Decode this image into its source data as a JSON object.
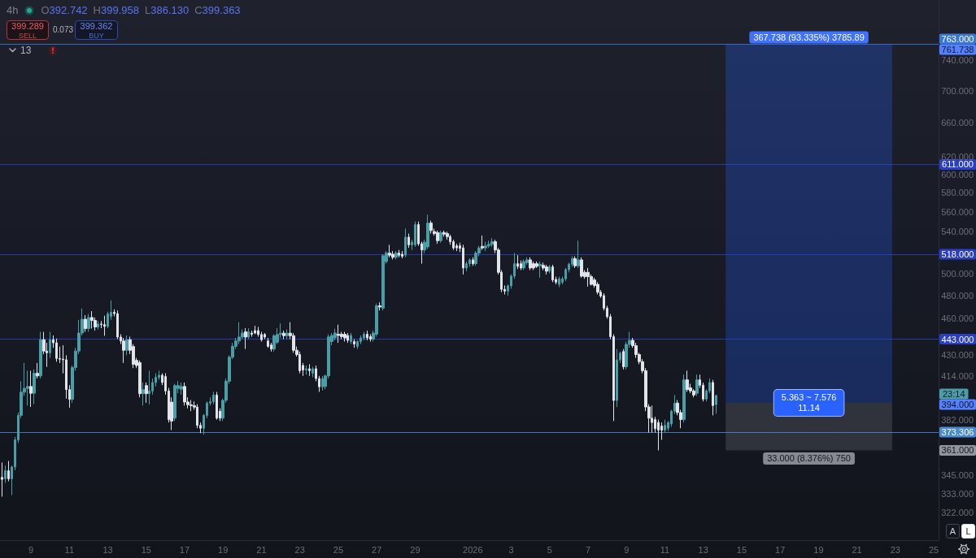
{
  "chart_data": {
    "type": "candlestick",
    "title": "4h",
    "subtitle": "O392.742 H399.958 L386.130 C399.363",
    "x": [
      "2025-12-07T12:00",
      "2025-12-07T16:00",
      "2025-12-07T20:00",
      "2025-12-08T00:00",
      "2025-12-08T04:00",
      "2025-12-08T08:00",
      "2025-12-08T12:00",
      "2025-12-08T16:00",
      "2025-12-08T20:00",
      "2025-12-09T00:00",
      "2025-12-09T04:00",
      "2025-12-09T08:00",
      "2025-12-09T12:00",
      "2025-12-09T16:00",
      "2025-12-09T20:00",
      "2025-12-10T00:00",
      "2025-12-10T04:00",
      "2025-12-10T08:00",
      "2025-12-10T12:00",
      "2025-12-10T16:00",
      "2025-12-10T20:00",
      "2025-12-11T00:00",
      "2025-12-11T04:00",
      "2025-12-11T08:00",
      "2025-12-11T12:00",
      "2025-12-11T16:00",
      "2025-12-11T20:00",
      "2025-12-12T00:00",
      "2025-12-12T04:00",
      "2025-12-12T08:00",
      "2025-12-12T12:00",
      "2025-12-12T16:00",
      "2025-12-12T20:00",
      "2025-12-13T00:00",
      "2025-12-13T04:00",
      "2025-12-13T08:00",
      "2025-12-13T12:00",
      "2025-12-13T16:00",
      "2025-12-13T20:00",
      "2025-12-14T00:00",
      "2025-12-14T04:00",
      "2025-12-14T08:00",
      "2025-12-14T12:00",
      "2025-12-14T16:00",
      "2025-12-14T20:00",
      "2025-12-15T00:00",
      "2025-12-15T04:00",
      "2025-12-15T08:00",
      "2025-12-15T12:00",
      "2025-12-15T16:00",
      "2025-12-15T20:00",
      "2025-12-16T00:00",
      "2025-12-16T04:00",
      "2025-12-16T08:00",
      "2025-12-16T12:00",
      "2025-12-16T16:00",
      "2025-12-16T20:00",
      "2025-12-17T00:00",
      "2025-12-17T04:00",
      "2025-12-17T08:00",
      "2025-12-17T12:00",
      "2025-12-17T16:00",
      "2025-12-17T20:00",
      "2025-12-18T00:00",
      "2025-12-18T04:00",
      "2025-12-18T08:00",
      "2025-12-18T12:00",
      "2025-12-18T16:00",
      "2025-12-18T20:00",
      "2025-12-19T00:00",
      "2025-12-19T04:00",
      "2025-12-19T08:00",
      "2025-12-19T12:00",
      "2025-12-19T16:00",
      "2025-12-19T20:00",
      "2025-12-20T00:00",
      "2025-12-20T04:00",
      "2025-12-20T08:00",
      "2025-12-20T12:00",
      "2025-12-20T16:00",
      "2025-12-20T20:00",
      "2025-12-21T00:00",
      "2025-12-21T04:00",
      "2025-12-21T08:00",
      "2025-12-21T12:00",
      "2025-12-21T16:00",
      "2025-12-21T20:00",
      "2025-12-22T00:00",
      "2025-12-22T04:00",
      "2025-12-22T08:00",
      "2025-12-22T12:00",
      "2025-12-22T16:00",
      "2025-12-22T20:00",
      "2025-12-23T00:00",
      "2025-12-23T04:00",
      "2025-12-23T08:00",
      "2025-12-23T12:00",
      "2025-12-23T16:00",
      "2025-12-23T20:00",
      "2025-12-24T00:00",
      "2025-12-24T04:00",
      "2025-12-24T08:00",
      "2025-12-24T12:00",
      "2025-12-24T16:00",
      "2025-12-24T20:00",
      "2025-12-25T00:00",
      "2025-12-25T04:00",
      "2025-12-25T08:00",
      "2025-12-25T12:00",
      "2025-12-25T16:00",
      "2025-12-25T20:00",
      "2025-12-26T00:00",
      "2025-12-26T04:00",
      "2025-12-26T08:00",
      "2025-12-26T12:00",
      "2025-12-26T16:00",
      "2025-12-26T20:00",
      "2025-12-27T00:00",
      "2025-12-27T04:00",
      "2025-12-27T08:00",
      "2025-12-27T12:00",
      "2025-12-27T16:00",
      "2025-12-27T20:00",
      "2025-12-28T00:00",
      "2025-12-28T04:00",
      "2025-12-28T08:00",
      "2025-12-28T12:00",
      "2025-12-28T16:00",
      "2025-12-28T20:00",
      "2025-12-29T00:00",
      "2025-12-29T04:00",
      "2025-12-29T08:00",
      "2025-12-29T12:00",
      "2025-12-29T16:00",
      "2025-12-29T20:00",
      "2025-12-30T00:00",
      "2025-12-30T04:00",
      "2025-12-30T08:00",
      "2025-12-30T12:00",
      "2025-12-30T16:00",
      "2025-12-30T20:00",
      "2025-12-31T00:00",
      "2025-12-31T04:00",
      "2025-12-31T08:00",
      "2025-12-31T12:00",
      "2025-12-31T16:00",
      "2025-12-31T20:00",
      "2026-01-01T00:00",
      "2026-01-01T04:00",
      "2026-01-01T08:00",
      "2026-01-01T12:00",
      "2026-01-01T16:00",
      "2026-01-01T20:00",
      "2026-01-02T00:00",
      "2026-01-02T04:00",
      "2026-01-02T08:00",
      "2026-01-02T12:00",
      "2026-01-02T16:00",
      "2026-01-02T20:00",
      "2026-01-03T00:00",
      "2026-01-03T04:00",
      "2026-01-03T08:00",
      "2026-01-03T12:00",
      "2026-01-03T16:00",
      "2026-01-03T20:00",
      "2026-01-04T00:00",
      "2026-01-04T04:00",
      "2026-01-04T08:00",
      "2026-01-04T12:00",
      "2026-01-04T16:00",
      "2026-01-04T20:00",
      "2026-01-05T00:00",
      "2026-01-05T04:00",
      "2026-01-05T08:00",
      "2026-01-05T12:00",
      "2026-01-05T16:00",
      "2026-01-05T20:00",
      "2026-01-06T00:00",
      "2026-01-06T04:00",
      "2026-01-06T08:00",
      "2026-01-06T12:00",
      "2026-01-06T16:00",
      "2026-01-06T20:00",
      "2026-01-07T00:00",
      "2026-01-07T04:00",
      "2026-01-07T08:00",
      "2026-01-07T12:00",
      "2026-01-07T16:00",
      "2026-01-07T20:00",
      "2026-01-08T00:00",
      "2026-01-08T04:00",
      "2026-01-08T08:00",
      "2026-01-08T12:00",
      "2026-01-08T16:00",
      "2026-01-08T20:00",
      "2026-01-09T00:00",
      "2026-01-09T04:00",
      "2026-01-09T08:00",
      "2026-01-09T12:00",
      "2026-01-09T16:00",
      "2026-01-09T20:00",
      "2026-01-10T00:00",
      "2026-01-10T04:00",
      "2026-01-10T08:00",
      "2026-01-10T12:00",
      "2026-01-10T16:00",
      "2026-01-10T20:00",
      "2026-01-11T00:00",
      "2026-01-11T04:00",
      "2026-01-11T08:00",
      "2026-01-11T12:00",
      "2026-01-11T16:00",
      "2026-01-11T20:00",
      "2026-01-12T00:00",
      "2026-01-12T04:00",
      "2026-01-12T08:00",
      "2026-01-12T12:00",
      "2026-01-12T16:00",
      "2026-01-12T20:00",
      "2026-01-13T00:00",
      "2026-01-13T04:00",
      "2026-01-13T08:00",
      "2026-01-13T12:00",
      "2026-01-13T16:00"
    ],
    "ohlc": [
      [
        343.5,
        353,
        331.5,
        342.2
      ],
      [
        342.6,
        351,
        340,
        347.7
      ],
      [
        347.7,
        354,
        341,
        342.6
      ],
      [
        342.6,
        351,
        332.5,
        350.1
      ],
      [
        350.1,
        370,
        348,
        368
      ],
      [
        368,
        387,
        366,
        385
      ],
      [
        385,
        410,
        383,
        401.8
      ],
      [
        401.8,
        424,
        399,
        404.6
      ],
      [
        404.6,
        418,
        392,
        406
      ],
      [
        406,
        418,
        391,
        401
      ],
      [
        401,
        419,
        393,
        416
      ],
      [
        416,
        424,
        412,
        414
      ],
      [
        414,
        449,
        412,
        442.5
      ],
      [
        442.5,
        449,
        431,
        433.4
      ],
      [
        433.4,
        440,
        421,
        432
      ],
      [
        432,
        449,
        428,
        442.5
      ],
      [
        442.5,
        446,
        436,
        440
      ],
      [
        440,
        443.5,
        425,
        427.5
      ],
      [
        427.5,
        437,
        424,
        427
      ],
      [
        427,
        438,
        416,
        426.5
      ],
      [
        426.5,
        430,
        397,
        403.7
      ],
      [
        403.7,
        407,
        390.5,
        396.5
      ],
      [
        396.5,
        422,
        394,
        420.5
      ],
      [
        420.5,
        436,
        418,
        433.4
      ],
      [
        433.4,
        459,
        431,
        448
      ],
      [
        448,
        468.7,
        446,
        459.5
      ],
      [
        459.5,
        463,
        449,
        451.7
      ],
      [
        451.7,
        464,
        449,
        461
      ],
      [
        461,
        466.4,
        451.7,
        458.5
      ],
      [
        458.5,
        461,
        450,
        453
      ],
      [
        453,
        458,
        451,
        455.5
      ],
      [
        455.5,
        458,
        452,
        455
      ],
      [
        455,
        462.5,
        445.7,
        453.5
      ],
      [
        453.5,
        466,
        452,
        464
      ],
      [
        462,
        475.7,
        459,
        465.4
      ],
      [
        465.4,
        468,
        462,
        464.3
      ],
      [
        464.3,
        467,
        443,
        444.7
      ],
      [
        444.7,
        447,
        439,
        441.5
      ],
      [
        441.5,
        444,
        424,
        434
      ],
      [
        434,
        446,
        430,
        442.5
      ],
      [
        442.5,
        445,
        431,
        434
      ],
      [
        437,
        439,
        420,
        423
      ],
      [
        426,
        428,
        420,
        422
      ],
      [
        424.3,
        426,
        398,
        400.7
      ],
      [
        400.7,
        409,
        392,
        403.7
      ],
      [
        406.7,
        409,
        394,
        400.7
      ],
      [
        400.7,
        418,
        392.7,
        402.7
      ],
      [
        402.7,
        412,
        400,
        409
      ],
      [
        409,
        416,
        406,
        413
      ],
      [
        413,
        418,
        411,
        414.5
      ],
      [
        414.5,
        416,
        407,
        409
      ],
      [
        413.5,
        416,
        400,
        402.7
      ],
      [
        402.7,
        405,
        380,
        382
      ],
      [
        394.5,
        398,
        374.7,
        381
      ],
      [
        383,
        408,
        381,
        406.7
      ],
      [
        404.6,
        410,
        401,
        406.7
      ],
      [
        404,
        409,
        400,
        406
      ],
      [
        406,
        409,
        392,
        394.6
      ],
      [
        394.6,
        398,
        390,
        392.6
      ],
      [
        392.6,
        396,
        388,
        391.9
      ],
      [
        391.9,
        395,
        389,
        390.9
      ],
      [
        390.9,
        393,
        376,
        378
      ],
      [
        378,
        380,
        372.6,
        376
      ],
      [
        376,
        386,
        371.6,
        385
      ],
      [
        385,
        395,
        383,
        393.8
      ],
      [
        393.8,
        398,
        392,
        394.8
      ],
      [
        394.8,
        402,
        393,
        399.7
      ],
      [
        399.7,
        402,
        382,
        383
      ],
      [
        388,
        390,
        381,
        383
      ],
      [
        383,
        397,
        381,
        395.8
      ],
      [
        395.8,
        412,
        394,
        410
      ],
      [
        410,
        430,
        408,
        428.5
      ],
      [
        428.5,
        440,
        427,
        437.2
      ],
      [
        437.2,
        444,
        435,
        441.5
      ],
      [
        441.5,
        457,
        439,
        444.7
      ],
      [
        444.7,
        451,
        443,
        448
      ],
      [
        449,
        452,
        435,
        444.7
      ],
      [
        444.7,
        452,
        443,
        449
      ],
      [
        448,
        450,
        445,
        447
      ],
      [
        450,
        454,
        447,
        448
      ],
      [
        450,
        453,
        445,
        446.8
      ],
      [
        446.8,
        449,
        441,
        442.5
      ],
      [
        446.8,
        448,
        443,
        444.7
      ],
      [
        441.5,
        444,
        436,
        437.2
      ],
      [
        438.2,
        440,
        433,
        435
      ],
      [
        435,
        447,
        433,
        445.8
      ],
      [
        440.5,
        452,
        439,
        446.8
      ],
      [
        446.8,
        456,
        444,
        447.9
      ],
      [
        447.9,
        450,
        443,
        445.8
      ],
      [
        445.8,
        451,
        443,
        447.9
      ],
      [
        447.9,
        457,
        443,
        445.8
      ],
      [
        445.8,
        448,
        432,
        434
      ],
      [
        434,
        437,
        429,
        430.6
      ],
      [
        430.6,
        433,
        416,
        418
      ],
      [
        422,
        424,
        414,
        418.5
      ],
      [
        418.5,
        422,
        415,
        419.5
      ],
      [
        419.5,
        423,
        414,
        418
      ],
      [
        416,
        421,
        413,
        419.5
      ],
      [
        419.5,
        422,
        410,
        412
      ],
      [
        412,
        414,
        402,
        405.8
      ],
      [
        405.8,
        414,
        403,
        412
      ],
      [
        406,
        415,
        404,
        414
      ],
      [
        414,
        447,
        412,
        444.8
      ],
      [
        441,
        448,
        438,
        446
      ],
      [
        444,
        451.5,
        442,
        448
      ],
      [
        447,
        455,
        440,
        446
      ],
      [
        447,
        449,
        443,
        445
      ],
      [
        447,
        449,
        441,
        444
      ],
      [
        446,
        448,
        440,
        442
      ],
      [
        441,
        448,
        439,
        446
      ],
      [
        441,
        443,
        436,
        439
      ],
      [
        437,
        442,
        435,
        441
      ],
      [
        441,
        446,
        439,
        444
      ],
      [
        444,
        449,
        442,
        447
      ],
      [
        447,
        450,
        442,
        444
      ],
      [
        445,
        447,
        441,
        443
      ],
      [
        443,
        450,
        441,
        448
      ],
      [
        447,
        473,
        445,
        471
      ],
      [
        471,
        474,
        467,
        470
      ],
      [
        469,
        518,
        467,
        516.5
      ],
      [
        511,
        521,
        509,
        519
      ],
      [
        519,
        527,
        515,
        517
      ],
      [
        518,
        521,
        513,
        515
      ],
      [
        515,
        521,
        513,
        519
      ],
      [
        519,
        522,
        515,
        517
      ],
      [
        518,
        521,
        514,
        516
      ],
      [
        517,
        543,
        515,
        534.5
      ],
      [
        534.5,
        538,
        524,
        527
      ],
      [
        527,
        532,
        522,
        529.5
      ],
      [
        527,
        550,
        525,
        547
      ],
      [
        547,
        550,
        526,
        528
      ],
      [
        528,
        530,
        509,
        522
      ],
      [
        522,
        532,
        519,
        529.5
      ],
      [
        525,
        557,
        523,
        548.5
      ],
      [
        548.5,
        551,
        538,
        541
      ],
      [
        540,
        543,
        536,
        538
      ],
      [
        539,
        541,
        528,
        531
      ],
      [
        531,
        541,
        529,
        539
      ],
      [
        539,
        541,
        535,
        537.5
      ],
      [
        538,
        540,
        532,
        535
      ],
      [
        535,
        537,
        527,
        530
      ],
      [
        530,
        532,
        522,
        524
      ],
      [
        526,
        528,
        521,
        524
      ],
      [
        526,
        529,
        520,
        523.5
      ],
      [
        524,
        527,
        499,
        505
      ],
      [
        505,
        511,
        502,
        509
      ],
      [
        509,
        514,
        506,
        512.6
      ],
      [
        512.6,
        515,
        507,
        509
      ],
      [
        509,
        521,
        507,
        519
      ],
      [
        519,
        526,
        516,
        524
      ],
      [
        525.5,
        536,
        522,
        524
      ],
      [
        524,
        530,
        521,
        526
      ],
      [
        526,
        531,
        524,
        527.5
      ],
      [
        527.5,
        533.5,
        525,
        530
      ],
      [
        530,
        532,
        519,
        522
      ],
      [
        522,
        524,
        499,
        501
      ],
      [
        501,
        503,
        483,
        485.5
      ],
      [
        485.5,
        489,
        481,
        484
      ],
      [
        484,
        490,
        480,
        488.6
      ],
      [
        488.6,
        499,
        486,
        497.5
      ],
      [
        497.5,
        519,
        495,
        509
      ],
      [
        509,
        517,
        504,
        506.5
      ],
      [
        509,
        512,
        503,
        505
      ],
      [
        505,
        513,
        503,
        511
      ],
      [
        510,
        515,
        508,
        512.6
      ],
      [
        512.6,
        515,
        503,
        505
      ],
      [
        509,
        511,
        503,
        505
      ],
      [
        509,
        511,
        505,
        506.5
      ],
      [
        507,
        511,
        496,
        508.5
      ],
      [
        507.5,
        510,
        503,
        505
      ],
      [
        506,
        508,
        499,
        502
      ],
      [
        502,
        508,
        500,
        506
      ],
      [
        506,
        508,
        492,
        494
      ],
      [
        494.5,
        497,
        490,
        492
      ],
      [
        490,
        497,
        487.5,
        495
      ],
      [
        492,
        497,
        490,
        495
      ],
      [
        495,
        505,
        493,
        503.5
      ],
      [
        503.5,
        510,
        501,
        508.5
      ],
      [
        508.5,
        516,
        506,
        513.8
      ],
      [
        513.8,
        516,
        505,
        507
      ],
      [
        507,
        531,
        505,
        512.6
      ],
      [
        512.6,
        515,
        496,
        497.5
      ],
      [
        501,
        503,
        495,
        497
      ],
      [
        501,
        505,
        488,
        497
      ],
      [
        497,
        499,
        489,
        490
      ],
      [
        494,
        496,
        487,
        489
      ],
      [
        490,
        492,
        481,
        483
      ],
      [
        483,
        485,
        478,
        479.5
      ],
      [
        480,
        482,
        467,
        469
      ],
      [
        469,
        471,
        460,
        461.7
      ],
      [
        461.7,
        464,
        443,
        445
      ],
      [
        445,
        447,
        381,
        395.7
      ],
      [
        395.7,
        435,
        391,
        426.4
      ],
      [
        426.4,
        433,
        424,
        431.7
      ],
      [
        433,
        435,
        419,
        421
      ],
      [
        421,
        441,
        419,
        438.7
      ],
      [
        438.7,
        449,
        436,
        442
      ],
      [
        442,
        444,
        436,
        437.7
      ],
      [
        437.7,
        440,
        428,
        430.6
      ],
      [
        430.6,
        432,
        423,
        425
      ],
      [
        425,
        427,
        416,
        418
      ],
      [
        418,
        420,
        388,
        391
      ],
      [
        391,
        393,
        373,
        383
      ],
      [
        383,
        392,
        373,
        380
      ],
      [
        382,
        384,
        373,
        375.7
      ],
      [
        380,
        382,
        361,
        374.7
      ],
      [
        377.5,
        380,
        368,
        374.7
      ],
      [
        374.7,
        382,
        373,
        378
      ],
      [
        376,
        381,
        374,
        380
      ],
      [
        379,
        389,
        377,
        388
      ],
      [
        388,
        399.7,
        386,
        393.8
      ],
      [
        393.8,
        396,
        385,
        387
      ],
      [
        387,
        389,
        376,
        382
      ],
      [
        382,
        415,
        380,
        411
      ],
      [
        411,
        418,
        402,
        403.7
      ],
      [
        405,
        408,
        401,
        402.7
      ],
      [
        402.7,
        404,
        398,
        399.7
      ],
      [
        401,
        415,
        399,
        411
      ],
      [
        411,
        415,
        405,
        407
      ],
      [
        407,
        409,
        395,
        396.7
      ],
      [
        396.7,
        404,
        395,
        402.7
      ],
      [
        402.7,
        412,
        401,
        409
      ],
      [
        409,
        411,
        385,
        392
      ],
      [
        392.742,
        399.958,
        386.13,
        399.363
      ]
    ],
    "colors": [
      "#e2e4e9",
      "#4a9ea6",
      "#e2e4e9",
      "#4a9ea6",
      "#4a9ea6",
      "#4a9ea6",
      "#4a9ea6",
      "#4a9ea6",
      "#4a9ea6",
      "#e2e4e9",
      "#4a9ea6",
      "#e2e4e9",
      "#4a9ea6",
      "#e2e4e9",
      "#e2e4e9",
      "#4a9ea6",
      "#e2e4e9",
      "#e2e4e9",
      "#e2e4e9",
      "#e2e4e9",
      "#e2e4e9",
      "#e2e4e9",
      "#4a9ea6",
      "#4a9ea6",
      "#4a9ea6",
      "#4a9ea6",
      "#e2e4e9",
      "#4a9ea6",
      "#e2e4e9",
      "#e2e4e9",
      "#4a9ea6",
      "#e2e4e9",
      "#e2e4e9",
      "#4a9ea6",
      "#4a9ea6",
      "#e2e4e9",
      "#e2e4e9",
      "#e2e4e9",
      "#e2e4e9",
      "#4a9ea6",
      "#e2e4e9",
      "#e2e4e9",
      "#e2e4e9",
      "#e2e4e9",
      "#4a9ea6",
      "#e2e4e9",
      "#4a9ea6",
      "#4a9ea6",
      "#4a9ea6",
      "#4a9ea6",
      "#e2e4e9",
      "#e2e4e9",
      "#e2e4e9",
      "#e2e4e9",
      "#4a9ea6",
      "#4a9ea6",
      "#4a9ea6",
      "#e2e4e9",
      "#e2e4e9",
      "#e2e4e9",
      "#e2e4e9",
      "#e2e4e9",
      "#e2e4e9",
      "#4a9ea6",
      "#4a9ea6",
      "#4a9ea6",
      "#4a9ea6",
      "#e2e4e9",
      "#e2e4e9",
      "#4a9ea6",
      "#4a9ea6",
      "#4a9ea6",
      "#4a9ea6",
      "#4a9ea6",
      "#4a9ea6",
      "#4a9ea6",
      "#e2e4e9",
      "#4a9ea6",
      "#e2e4e9",
      "#e2e4e9",
      "#e2e4e9",
      "#e2e4e9",
      "#e2e4e9",
      "#e2e4e9",
      "#e2e4e9",
      "#4a9ea6",
      "#4a9ea6",
      "#4a9ea6",
      "#e2e4e9",
      "#4a9ea6",
      "#e2e4e9",
      "#e2e4e9",
      "#e2e4e9",
      "#e2e4e9",
      "#e2e4e9",
      "#4a9ea6",
      "#e2e4e9",
      "#4a9ea6",
      "#e2e4e9",
      "#e2e4e9",
      "#4a9ea6",
      "#4a9ea6",
      "#4a9ea6",
      "#4a9ea6",
      "#4a9ea6",
      "#e2e4e9",
      "#e2e4e9",
      "#e2e4e9",
      "#e2e4e9",
      "#4a9ea6",
      "#e2e4e9",
      "#4a9ea6",
      "#4a9ea6",
      "#4a9ea6",
      "#e2e4e9",
      "#e2e4e9",
      "#4a9ea6",
      "#4a9ea6",
      "#e2e4e9",
      "#4a9ea6",
      "#4a9ea6",
      "#e2e4e9",
      "#e2e4e9",
      "#4a9ea6",
      "#e2e4e9",
      "#e2e4e9",
      "#4a9ea6",
      "#e2e4e9",
      "#4a9ea6",
      "#4a9ea6",
      "#e2e4e9",
      "#e2e4e9",
      "#4a9ea6",
      "#4a9ea6",
      "#e2e4e9",
      "#e2e4e9",
      "#e2e4e9",
      "#4a9ea6",
      "#e2e4e9",
      "#e2e4e9",
      "#e2e4e9",
      "#e2e4e9",
      "#e2e4e9",
      "#e2e4e9",
      "#e2e4e9",
      "#4a9ea6",
      "#4a9ea6",
      "#e2e4e9",
      "#4a9ea6",
      "#4a9ea6",
      "#e2e4e9",
      "#4a9ea6",
      "#4a9ea6",
      "#4a9ea6",
      "#e2e4e9",
      "#e2e4e9",
      "#e2e4e9",
      "#e2e4e9",
      "#4a9ea6",
      "#4a9ea6",
      "#4a9ea6",
      "#e2e4e9",
      "#e2e4e9",
      "#4a9ea6",
      "#4a9ea6",
      "#e2e4e9",
      "#e2e4e9",
      "#e2e4e9",
      "#4a9ea6",
      "#e2e4e9",
      "#e2e4e9",
      "#4a9ea6",
      "#e2e4e9",
      "#e2e4e9",
      "#4a9ea6",
      "#4a9ea6",
      "#4a9ea6",
      "#4a9ea6",
      "#4a9ea6",
      "#e2e4e9",
      "#4a9ea6",
      "#e2e4e9",
      "#e2e4e9",
      "#e2e4e9",
      "#e2e4e9",
      "#e2e4e9",
      "#e2e4e9",
      "#e2e4e9",
      "#e2e4e9",
      "#e2e4e9",
      "#e2e4e9",
      "#e2e4e9",
      "#4a9ea6",
      "#4a9ea6",
      "#e2e4e9",
      "#4a9ea6",
      "#4a9ea6",
      "#e2e4e9",
      "#e2e4e9",
      "#e2e4e9",
      "#e2e4e9",
      "#e2e4e9",
      "#e2e4e9",
      "#e2e4e9",
      "#e2e4e9",
      "#e2e4e9",
      "#e2e4e9",
      "#4a9ea6",
      "#4a9ea6",
      "#4a9ea6",
      "#4a9ea6",
      "#e2e4e9",
      "#e2e4e9",
      "#4a9ea6",
      "#e2e4e9",
      "#e2e4e9",
      "#e2e4e9",
      "#4a9ea6",
      "#e2e4e9",
      "#e2e4e9",
      "#4a9ea6",
      "#4a9ea6",
      "#e2e4e9",
      "#4a9ea6"
    ],
    "xlim": [
      "2025-12-07T09:20",
      "2026-01-25T06:00"
    ],
    "xticks": [
      {
        "value": "2025-12-09",
        "label": "9"
      },
      {
        "value": "2025-12-11",
        "label": "11"
      },
      {
        "value": "2025-12-13",
        "label": "13"
      },
      {
        "value": "2025-12-15",
        "label": "15"
      },
      {
        "value": "2025-12-17",
        "label": "17"
      },
      {
        "value": "2025-12-19",
        "label": "19"
      },
      {
        "value": "2025-12-21",
        "label": "21"
      },
      {
        "value": "2025-12-23",
        "label": "23"
      },
      {
        "value": "2025-12-25",
        "label": "25"
      },
      {
        "value": "2025-12-27",
        "label": "27"
      },
      {
        "value": "2025-12-29",
        "label": "29"
      },
      {
        "value": "2026-01-01",
        "label": "2026"
      },
      {
        "value": "2026-01-03",
        "label": "3"
      },
      {
        "value": "2026-01-05",
        "label": "5"
      },
      {
        "value": "2026-01-07",
        "label": "7"
      },
      {
        "value": "2026-01-09",
        "label": "9"
      },
      {
        "value": "2026-01-11",
        "label": "11"
      },
      {
        "value": "2026-01-13",
        "label": "13"
      },
      {
        "value": "2026-01-15",
        "label": "15"
      },
      {
        "value": "2026-01-17",
        "label": "17"
      },
      {
        "value": "2026-01-19",
        "label": "19"
      },
      {
        "value": "2026-01-21",
        "label": "21"
      },
      {
        "value": "2026-01-23",
        "label": "23"
      },
      {
        "value": "2026-01-25",
        "label": "25"
      }
    ],
    "ylim": [
      306,
      827
    ],
    "yticks": [
      {
        "value": 322,
        "label": "322.000"
      },
      {
        "value": 333,
        "label": "333.000"
      },
      {
        "value": 345,
        "label": "345.000"
      },
      {
        "value": 382,
        "label": "382.000"
      },
      {
        "value": 414,
        "label": "414.000"
      },
      {
        "value": 430,
        "label": "430.000"
      },
      {
        "value": 460,
        "label": "460.000"
      },
      {
        "value": 480,
        "label": "480.000"
      },
      {
        "value": 500,
        "label": "500.000"
      },
      {
        "value": 540,
        "label": "540.000"
      },
      {
        "value": 560,
        "label": "560.000"
      },
      {
        "value": 580,
        "label": "580.000"
      },
      {
        "value": 600,
        "label": "600.000"
      },
      {
        "value": 620,
        "label": "620.000"
      },
      {
        "value": 660,
        "label": "660.000"
      },
      {
        "value": 700,
        "label": "700.000"
      },
      {
        "value": 740,
        "label": "740.000"
      }
    ],
    "log": true,
    "ref_lines": [
      {
        "axis": "y",
        "value": 763,
        "label": "763.000",
        "color": "#3a78d8"
      },
      {
        "axis": "y",
        "value": 611,
        "label": "611.000",
        "color": "#2a3fc4"
      },
      {
        "axis": "y",
        "value": 518,
        "label": "518.000",
        "color": "#2a3fc4"
      },
      {
        "axis": "y",
        "value": 443,
        "label": "443.000",
        "color": "#2a3fc4"
      },
      {
        "axis": "y",
        "value": 373.306,
        "label": "373.306",
        "color": "#4a8ad0"
      }
    ],
    "bands": [
      {
        "axis": "y",
        "from": 394,
        "to": 761.738,
        "label": "367.738 (93.335%) 3785.89",
        "color": "#2962ff"
      },
      {
        "axis": "y",
        "from": 361,
        "to": 394,
        "label": "33.000 (8.376%) 750",
        "color": "#787b86"
      }
    ],
    "annotations": [
      "399.289",
      "SELL",
      "0.073",
      "399.362",
      "BUY",
      "13",
      "A",
      "L",
      "761.738",
      "394.000",
      "361.000",
      "23:14",
      {
        "text": "5.363 ~ 7.576\n11.14",
        "x": "2026-01-18T12:00",
        "y": 394
      }
    ]
  }
}
